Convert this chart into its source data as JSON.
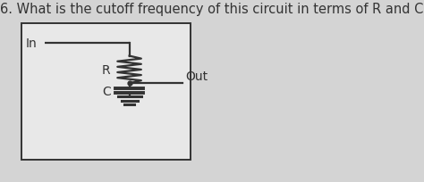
{
  "title": "6. What is the cutoff frequency of this circuit in terms of R and C?",
  "title_fontsize": 10.5,
  "title_color": "#333333",
  "bg_color": "#d4d4d4",
  "box_bg": "#e8e8e8",
  "box_border": "#333333",
  "text_color": "#333333",
  "label_In": "In",
  "label_Out": "Out",
  "label_R": "R",
  "label_C": "C",
  "fig_width": 4.74,
  "fig_height": 2.05
}
